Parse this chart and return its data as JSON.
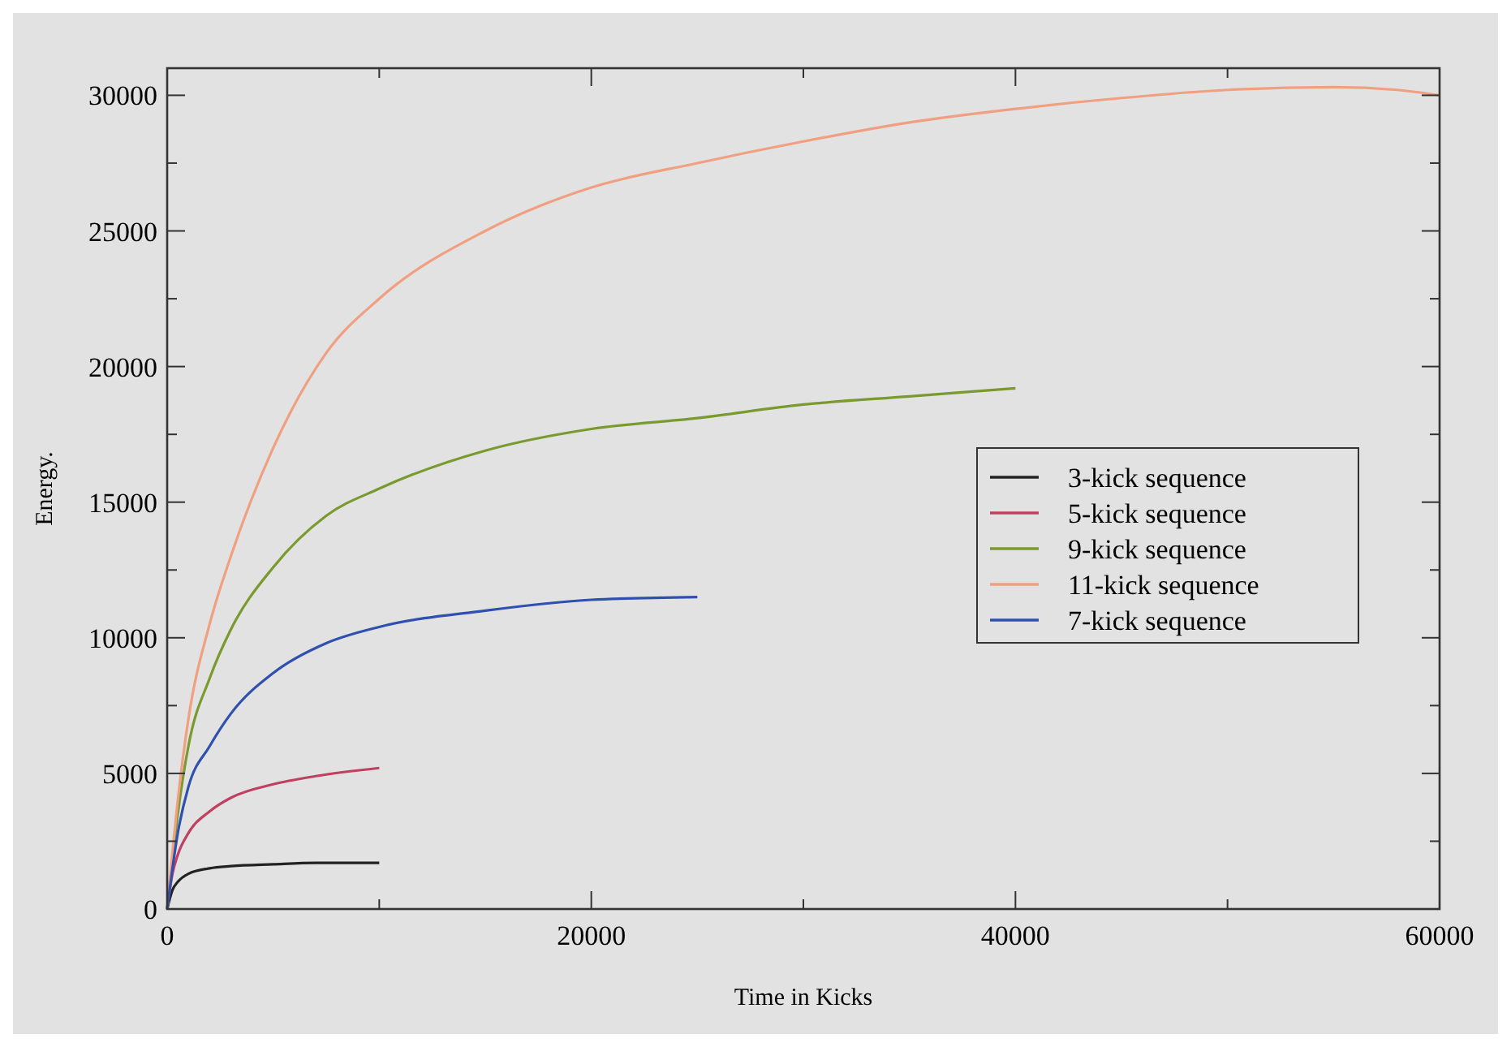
{
  "chart_data": {
    "type": "line",
    "xlabel": "Time in Kicks",
    "ylabel": "Energy.",
    "xlim": [
      0,
      60000
    ],
    "ylim": [
      0,
      31000
    ],
    "xticks": [
      0,
      {
        "value": 10000,
        "label": null
      },
      20000,
      {
        "value": 30000,
        "label": null
      },
      40000,
      {
        "value": 50000,
        "label": null
      },
      60000
    ],
    "yticks": [
      0,
      {
        "value": 2500,
        "label": null
      },
      5000,
      {
        "value": 7500,
        "label": null
      },
      10000,
      {
        "value": 12500,
        "label": null
      },
      15000,
      {
        "value": 17500,
        "label": null
      },
      20000,
      {
        "value": 22500,
        "label": null
      },
      25000,
      {
        "value": 27500,
        "label": null
      },
      30000
    ],
    "grid": false,
    "legend": "right",
    "marker": "none",
    "line_style": "solid",
    "series": [
      {
        "name": "3-kick sequence",
        "color": "#222222",
        "x": [
          0,
          250,
          500,
          1000,
          2000,
          3000,
          5000,
          7000,
          10000
        ],
        "values": [
          0,
          700,
          1000,
          1300,
          1500,
          1580,
          1650,
          1700,
          1700
        ]
      },
      {
        "name": "5-kick sequence",
        "color": "#c04060",
        "x": [
          0,
          250,
          500,
          1000,
          2000,
          3000,
          5000,
          7000,
          10000
        ],
        "values": [
          0,
          1300,
          2000,
          2800,
          3600,
          4100,
          4600,
          4900,
          5200
        ]
      },
      {
        "name": "9-kick sequence",
        "color": "#7a9a30",
        "x": [
          0,
          500,
          1000,
          2000,
          3000,
          5000,
          7500,
          10000,
          15000,
          20000,
          25000,
          30000,
          35000,
          40000
        ],
        "values": [
          0,
          3500,
          6000,
          8500,
          10300,
          12600,
          14500,
          15500,
          16900,
          17700,
          18100,
          18600,
          18900,
          19200
        ]
      },
      {
        "name": "11-kick sequence",
        "color": "#f0a080",
        "x": [
          0,
          500,
          1000,
          2000,
          3000,
          5000,
          7500,
          10000,
          15000,
          20000,
          25000,
          30000,
          35000,
          40000,
          45000,
          50000,
          55000,
          58000,
          60000
        ],
        "values": [
          0,
          4000,
          7000,
          10500,
          13000,
          17000,
          20500,
          22500,
          25000,
          26600,
          27500,
          28300,
          29000,
          29500,
          29900,
          30200,
          30300,
          30200,
          30000
        ]
      },
      {
        "name": "7-kick sequence",
        "color": "#3050b0",
        "x": [
          0,
          500,
          1000,
          2000,
          3000,
          5000,
          7500,
          10000,
          15000,
          20000,
          25000
        ],
        "values": [
          0,
          2800,
          4500,
          6000,
          7200,
          8700,
          9800,
          10400,
          11000,
          11400,
          11500
        ]
      }
    ]
  }
}
